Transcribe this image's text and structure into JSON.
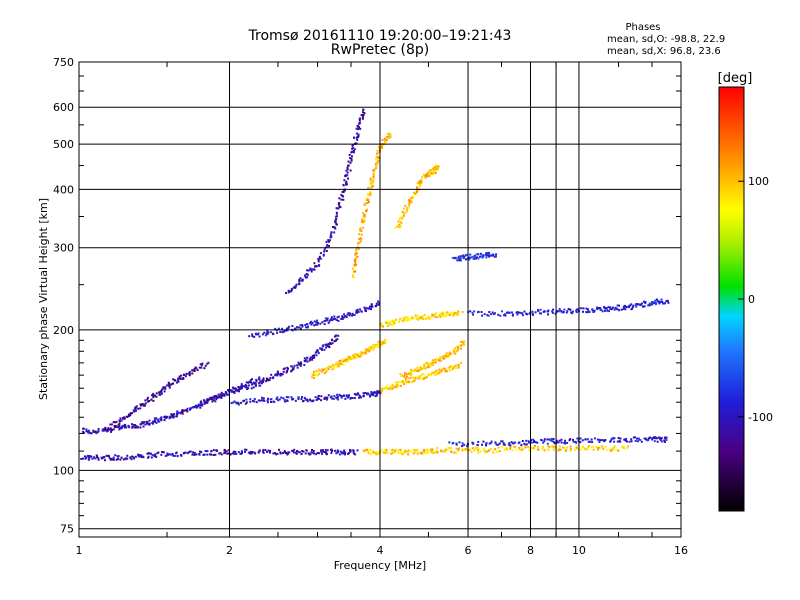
{
  "header": {
    "title_line1": "Tromsø 20161110 19:20:00–19:21:43",
    "title_line2": "RwPretec (8p)"
  },
  "info": {
    "heading": "Phases",
    "line_o": "mean, sd,O: -98.8, 22.9",
    "line_x": "mean, sd,X:  96.8, 23.6"
  },
  "chart_data": {
    "type": "scatter",
    "xlabel": "Frequency [MHz]",
    "ylabel": "Stationary phase Virtual Height [km]",
    "xscale": "log",
    "yscale": "log",
    "xlim": [
      1,
      16
    ],
    "ylim": [
      72,
      750
    ],
    "x_ticks": [
      1,
      2,
      4,
      6,
      8,
      10,
      16
    ],
    "x_ticks_labels": [
      "1",
      "2",
      "4",
      "6",
      "8",
      "10",
      "16"
    ],
    "y_ticks": [
      75,
      100,
      200,
      300,
      400,
      500,
      600,
      750
    ],
    "y_ticks_labels": [
      "75",
      "100",
      "200",
      "300",
      "400",
      "500",
      "600",
      "750"
    ],
    "grid": true,
    "colorbar": {
      "label": "[deg]",
      "range": [
        -180,
        180
      ],
      "ticks": [
        -100,
        0,
        100
      ],
      "ticks_labels": [
        "-100",
        "0",
        "100"
      ],
      "colormap": "rainbow"
    },
    "traces": [
      {
        "name": "",
        "points": [
          [
            1.0,
            107
          ],
          [
            1.1,
            107
          ],
          [
            1.2,
            107
          ],
          [
            1.35,
            108
          ],
          [
            1.5,
            109
          ],
          [
            1.7,
            109
          ],
          [
            1.9,
            110
          ],
          [
            2.1,
            110
          ],
          [
            2.4,
            110
          ],
          [
            2.7,
            110
          ],
          [
            3.0,
            110
          ],
          [
            3.3,
            110
          ],
          [
            3.6,
            110
          ]
        ],
        "phase": -110
      },
      {
        "name": "",
        "points": [
          [
            3.7,
            110
          ],
          [
            4.0,
            110
          ],
          [
            4.4,
            110
          ],
          [
            4.8,
            110
          ],
          [
            5.2,
            111
          ],
          [
            5.8,
            111
          ],
          [
            6.5,
            111
          ],
          [
            7.5,
            112
          ],
          [
            8.5,
            112
          ],
          [
            9.5,
            112
          ],
          [
            11,
            112
          ],
          [
            12.5,
            112
          ]
        ],
        "phase": 95
      },
      {
        "name": "",
        "points": [
          [
            5.5,
            114
          ],
          [
            6.5,
            115
          ],
          [
            7.5,
            115
          ],
          [
            8.5,
            116
          ],
          [
            9.5,
            116
          ],
          [
            11,
            117
          ],
          [
            12.5,
            117
          ],
          [
            14,
            117
          ],
          [
            15,
            117
          ]
        ],
        "phase": -95
      },
      {
        "name": "",
        "points": [
          [
            1.0,
            122
          ],
          [
            1.1,
            122
          ],
          [
            1.2,
            124
          ],
          [
            1.3,
            125
          ],
          [
            1.4,
            128
          ],
          [
            1.5,
            131
          ],
          [
            1.6,
            134
          ],
          [
            1.75,
            139
          ],
          [
            1.9,
            145
          ],
          [
            2.1,
            152
          ],
          [
            2.3,
            158
          ]
        ],
        "phase": -110
      },
      {
        "name": "",
        "points": [
          [
            1.15,
            124
          ],
          [
            1.25,
            132
          ],
          [
            1.35,
            140
          ],
          [
            1.45,
            148
          ],
          [
            1.55,
            156
          ],
          [
            1.65,
            162
          ],
          [
            1.8,
            170
          ]
        ],
        "phase": -120
      },
      {
        "name": "",
        "points": [
          [
            1.7,
            138
          ],
          [
            1.9,
            145
          ],
          [
            2.1,
            150
          ],
          [
            2.3,
            155
          ],
          [
            2.5,
            162
          ],
          [
            2.7,
            168
          ],
          [
            2.9,
            175
          ],
          [
            3.1,
            185
          ],
          [
            3.3,
            195
          ]
        ],
        "phase": -110
      },
      {
        "name": "",
        "points": [
          [
            2.0,
            140
          ],
          [
            2.3,
            142
          ],
          [
            2.6,
            143
          ],
          [
            2.9,
            143
          ],
          [
            3.2,
            144
          ],
          [
            3.5,
            145
          ],
          [
            3.8,
            146
          ],
          [
            4.0,
            147
          ]
        ],
        "phase": -100
      },
      {
        "name": "",
        "points": [
          [
            2.2,
            195
          ],
          [
            2.5,
            200
          ],
          [
            2.8,
            205
          ],
          [
            3.1,
            210
          ],
          [
            3.4,
            215
          ],
          [
            3.7,
            222
          ],
          [
            4.0,
            230
          ]
        ],
        "phase": -100
      },
      {
        "name": "",
        "points": [
          [
            2.9,
            160
          ],
          [
            3.1,
            165
          ],
          [
            3.3,
            170
          ],
          [
            3.5,
            175
          ],
          [
            3.7,
            180
          ],
          [
            3.9,
            185
          ],
          [
            4.1,
            190
          ]
        ],
        "phase": 95
      },
      {
        "name": "",
        "points": [
          [
            4.0,
            150
          ],
          [
            4.3,
            153
          ],
          [
            4.6,
            157
          ],
          [
            5.0,
            161
          ],
          [
            5.4,
            165
          ],
          [
            5.8,
            170
          ]
        ],
        "phase": 95
      },
      {
        "name": "",
        "points": [
          [
            4.4,
            160
          ],
          [
            4.7,
            165
          ],
          [
            5.0,
            170
          ],
          [
            5.3,
            175
          ],
          [
            5.6,
            180
          ],
          [
            5.9,
            190
          ]
        ],
        "phase": 100
      },
      {
        "name": "",
        "points": [
          [
            4.0,
            205
          ],
          [
            4.3,
            210
          ],
          [
            4.6,
            213
          ],
          [
            5.0,
            215
          ],
          [
            5.4,
            217
          ],
          [
            5.8,
            219
          ]
        ],
        "phase": 90
      },
      {
        "name": "",
        "points": [
          [
            6.0,
            218
          ],
          [
            7.0,
            218
          ],
          [
            8.0,
            219
          ],
          [
            9.0,
            220
          ],
          [
            10,
            221
          ],
          [
            11,
            222
          ],
          [
            12,
            224
          ],
          [
            13,
            226
          ],
          [
            14,
            230
          ],
          [
            15,
            232
          ]
        ],
        "phase": -90
      },
      {
        "name": "",
        "points": [
          [
            2.6,
            240
          ],
          [
            2.8,
            260
          ],
          [
            3.0,
            280
          ],
          [
            3.2,
            320
          ],
          [
            3.3,
            370
          ],
          [
            3.4,
            420
          ],
          [
            3.5,
            480
          ],
          [
            3.6,
            540
          ],
          [
            3.7,
            600
          ]
        ],
        "phase": -110
      },
      {
        "name": "",
        "points": [
          [
            3.5,
            260
          ],
          [
            3.6,
            300
          ],
          [
            3.7,
            350
          ],
          [
            3.8,
            400
          ],
          [
            3.9,
            450
          ],
          [
            4.0,
            500
          ],
          [
            4.2,
            530
          ]
        ],
        "phase": 105
      },
      {
        "name": "",
        "points": [
          [
            4.3,
            330
          ],
          [
            4.5,
            370
          ],
          [
            4.7,
            400
          ],
          [
            4.9,
            430
          ],
          [
            5.1,
            440
          ],
          [
            5.2,
            450
          ]
        ],
        "phase": 100
      },
      {
        "name": "",
        "points": [
          [
            5.6,
            285
          ],
          [
            6.0,
            288
          ],
          [
            6.4,
            290
          ],
          [
            6.8,
            292
          ]
        ],
        "phase": -80
      }
    ]
  }
}
